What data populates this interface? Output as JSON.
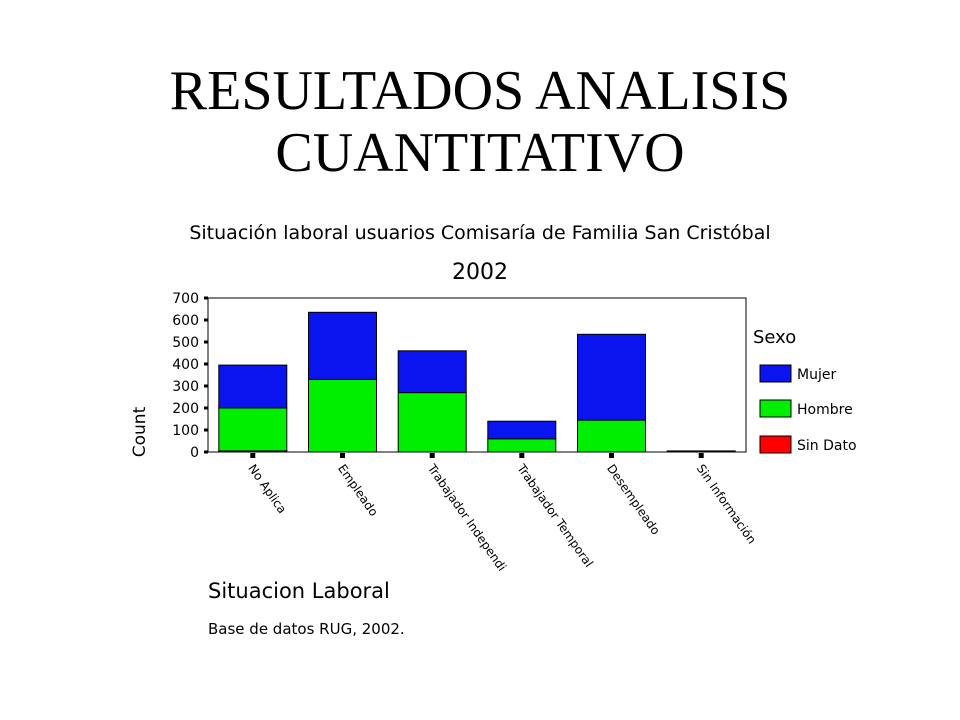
{
  "slide": {
    "title_line1": "RESULTADOS ANALISIS",
    "title_line2": "CUANTITATIVO"
  },
  "chart_data": {
    "type": "bar",
    "stacked": true,
    "title": "Situación laboral usuarios Comisaría de Familia San Cristóbal",
    "subtitle": "2002",
    "xlabel": "Situacion Laboral",
    "ylabel": "Count",
    "ylim": [
      0,
      700
    ],
    "yticks": [
      0,
      100,
      200,
      300,
      400,
      500,
      600,
      700
    ],
    "categories": [
      "No Aplica",
      "Empleado",
      "Trabajador Independi",
      "Trabajador Temporal",
      "Desempleado",
      "Sin Información"
    ],
    "series": [
      {
        "name": "Sin Dato",
        "color": "#ff0000",
        "values": [
          5,
          0,
          0,
          0,
          0,
          0
        ]
      },
      {
        "name": "Hombre",
        "color": "#00ee00",
        "values": [
          195,
          330,
          270,
          60,
          145,
          0
        ]
      },
      {
        "name": "Mujer",
        "color": "#0a14ee",
        "values": [
          195,
          305,
          190,
          80,
          390,
          5
        ]
      }
    ],
    "legend_title": "Sexo",
    "legend_order": [
      "Mujer",
      "Hombre",
      "Sin Dato"
    ],
    "legend_position": "right",
    "grid": false,
    "footnote": "Base de datos RUG, 2002."
  }
}
